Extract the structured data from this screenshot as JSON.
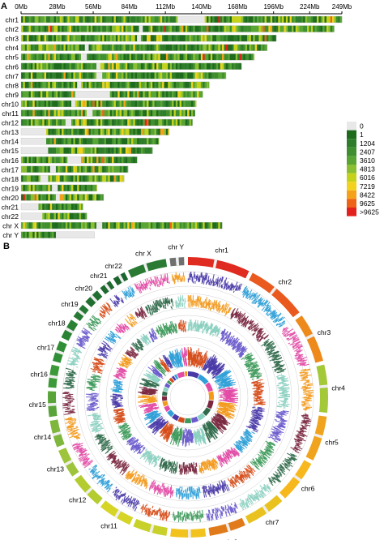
{
  "panel_labels": [
    "A",
    "B"
  ],
  "chart_data": [
    {
      "type": "heatmap",
      "panel": "A",
      "axis_ticks": [
        "0Mb",
        "28Mb",
        "56Mb",
        "84Mb",
        "112Mb",
        "140Mb",
        "168Mb",
        "196Mb",
        "224Mb",
        "249Mb"
      ],
      "tick_values_mb": [
        0,
        28,
        56,
        84,
        112,
        140,
        168,
        196,
        224,
        249
      ],
      "xlim_mb": [
        0,
        249
      ],
      "chromosomes": [
        {
          "name": "chr1",
          "length_mb": 249,
          "gap_mb": [
            121,
            142
          ]
        },
        {
          "name": "chr2",
          "length_mb": 243,
          "gap_mb": [
            91,
            94
          ]
        },
        {
          "name": "chr3",
          "length_mb": 198,
          "gap_mb": [
            90,
            93
          ]
        },
        {
          "name": "chr4",
          "length_mb": 191,
          "gap_mb": [
            49,
            52
          ]
        },
        {
          "name": "chr5",
          "length_mb": 181,
          "gap_mb": [
            46,
            50
          ]
        },
        {
          "name": "chr6",
          "length_mb": 171,
          "gap_mb": [
            58,
            61
          ]
        },
        {
          "name": "chr7",
          "length_mb": 159,
          "gap_mb": [
            58,
            62
          ]
        },
        {
          "name": "chr8",
          "length_mb": 146,
          "gap_mb": [
            43,
            46
          ]
        },
        {
          "name": "chr9",
          "length_mb": 141,
          "gap_mb": [
            41,
            68
          ]
        },
        {
          "name": "chr10",
          "length_mb": 136,
          "gap_mb": [
            39,
            42
          ]
        },
        {
          "name": "chr11",
          "length_mb": 135,
          "gap_mb": [
            51,
            55
          ]
        },
        {
          "name": "chr12",
          "length_mb": 133,
          "gap_mb": [
            34,
            38
          ]
        },
        {
          "name": "chr13",
          "length_mb": 115,
          "gap_mb": [
            0,
            19
          ]
        },
        {
          "name": "chr14",
          "length_mb": 107,
          "gap_mb": [
            0,
            19
          ]
        },
        {
          "name": "chr15",
          "length_mb": 102,
          "gap_mb": [
            0,
            20
          ]
        },
        {
          "name": "chr16",
          "length_mb": 90,
          "gap_mb": [
            35,
            46
          ]
        },
        {
          "name": "chr17",
          "length_mb": 83,
          "gap_mb": [
            22,
            26
          ]
        },
        {
          "name": "chr18",
          "length_mb": 80,
          "gap_mb": [
            15,
            21
          ]
        },
        {
          "name": "chr19",
          "length_mb": 59,
          "gap_mb": [
            24,
            28
          ]
        },
        {
          "name": "chr20",
          "length_mb": 64,
          "gap_mb": [
            26,
            30
          ]
        },
        {
          "name": "chr21",
          "length_mb": 48,
          "gap_mb": [
            0,
            13
          ]
        },
        {
          "name": "chr22",
          "length_mb": 51,
          "gap_mb": [
            0,
            16
          ]
        },
        {
          "name": "chr X",
          "length_mb": 156,
          "gap_mb": [
            58,
            62
          ]
        },
        {
          "name": "chr Y",
          "length_mb": 57,
          "gap_mb": [
            26,
            57
          ]
        }
      ],
      "legend": {
        "labels": [
          "0",
          "1",
          "1204",
          "2407",
          "3610",
          "4813",
          "6016",
          "7219",
          "8422",
          "9625",
          ">9625"
        ],
        "colors": [
          "#e8e8e8",
          "#1e6b1e",
          "#2e7d2a",
          "#3f8f2f",
          "#58a534",
          "#8bbf32",
          "#c5d21c",
          "#f2d21e",
          "#f5a21a",
          "#ee6216",
          "#e3201b"
        ]
      }
    },
    {
      "type": "circos",
      "panel": "B",
      "segments": [
        {
          "name": "chr1",
          "length_mb": 249,
          "color": "#e02b20"
        },
        {
          "name": "chr2",
          "length_mb": 243,
          "color": "#ea5a1e"
        },
        {
          "name": "chr3",
          "length_mb": 198,
          "color": "#ee8a1c"
        },
        {
          "name": "chr4",
          "length_mb": 191,
          "color": "#a3c838"
        },
        {
          "name": "chr5",
          "length_mb": 181,
          "color": "#f0a31c"
        },
        {
          "name": "chr6",
          "length_mb": 171,
          "color": "#f6b81d"
        },
        {
          "name": "chr7",
          "length_mb": 159,
          "color": "#e9c21f"
        },
        {
          "name": "chr8",
          "length_mb": 146,
          "color": "#e07a1b"
        },
        {
          "name": "chr9",
          "length_mb": 141,
          "color": "#f2c21e"
        },
        {
          "name": "chr10",
          "length_mb": 136,
          "color": "#c8d12a"
        },
        {
          "name": "chr11",
          "length_mb": 135,
          "color": "#d6d424"
        },
        {
          "name": "chr12",
          "length_mb": 133,
          "color": "#b5cc30"
        },
        {
          "name": "chr13",
          "length_mb": 115,
          "color": "#9dc43a"
        },
        {
          "name": "chr14",
          "length_mb": 107,
          "color": "#7fb63c"
        },
        {
          "name": "chr15",
          "length_mb": 102,
          "color": "#5aa53a"
        },
        {
          "name": "chr16",
          "length_mb": 90,
          "color": "#3c9a38"
        },
        {
          "name": "chr17",
          "length_mb": 83,
          "color": "#2f8e36"
        },
        {
          "name": "chr18",
          "length_mb": 80,
          "color": "#2a8234"
        },
        {
          "name": "chr19",
          "length_mb": 59,
          "color": "#267a33"
        },
        {
          "name": "chr20",
          "length_mb": 64,
          "color": "#227031"
        },
        {
          "name": "chr21",
          "length_mb": 48,
          "color": "#1f6a2f"
        },
        {
          "name": "chr22",
          "length_mb": 51,
          "color": "#1c642d"
        },
        {
          "name": "chr X",
          "length_mb": 156,
          "color": "#2a7a33"
        },
        {
          "name": "chr Y",
          "length_mb": 57,
          "color": "#6f6f6f"
        }
      ],
      "track_palette": [
        "#4a3aa8",
        "#30a0d8",
        "#e24ba6",
        "#f39a1c",
        "#7a2840",
        "#2f6a4a",
        "#8ad0c0",
        "#6a5acd",
        "#3d9a5a",
        "#d64d1a"
      ]
    }
  ]
}
